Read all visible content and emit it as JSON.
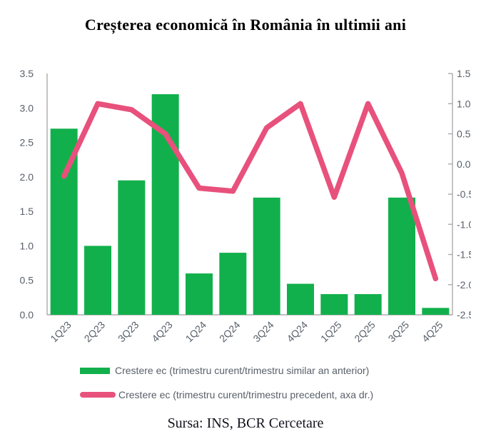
{
  "colors": {
    "bar": "#12B04C",
    "line": "#E8517C",
    "axis_text": "#59606A",
    "axis_line": "#ABABAB",
    "title_text": "#000000",
    "source_text": "#13131D",
    "background": "#FFFFFF"
  },
  "chart_data": {
    "type": "bar",
    "combo_with_line": true,
    "title": "Creșterea economică în România în ultimii ani",
    "source": "Sursa: INS, BCR Cercetare",
    "categories": [
      "1Q23",
      "2Q23",
      "3Q23",
      "4Q23",
      "1Q24",
      "2Q24",
      "3Q24",
      "4Q24",
      "1Q25",
      "2Q25",
      "3Q25",
      "4Q25"
    ],
    "series": [
      {
        "name": "Crestere ec (trimestru curent/trimestru similar an anterior)",
        "chart": "bar",
        "axis": "left",
        "color": "#12B04C",
        "values": [
          2.7,
          1.0,
          1.95,
          3.2,
          0.6,
          0.9,
          1.7,
          0.45,
          0.3,
          0.3,
          1.7,
          0.1
        ]
      },
      {
        "name": "Crestere ec (trimestru curent/trimestru precedent, axa dr.)",
        "chart": "line",
        "axis": "right",
        "color": "#E8517C",
        "values": [
          -0.2,
          1.0,
          0.9,
          0.5,
          -0.4,
          -0.45,
          0.6,
          1.0,
          -0.55,
          1.0,
          -0.15,
          -1.9
        ]
      }
    ],
    "left_axis": {
      "min": 0.0,
      "max": 3.5,
      "tick_step": 0.5,
      "ticks": [
        "0.0",
        "0.5",
        "1.0",
        "1.5",
        "2.0",
        "2.5",
        "3.0",
        "3.5"
      ]
    },
    "right_axis": {
      "min": -2.5,
      "max": 1.5,
      "tick_step": 0.5,
      "ticks": [
        "-2.5",
        "-2.0",
        "-1.5",
        "-1.0",
        "-0.5",
        "0.0",
        "0.5",
        "1.0",
        "1.5"
      ]
    },
    "grid": false,
    "legend_position": "bottom",
    "x_label_rotation_deg": -45
  }
}
